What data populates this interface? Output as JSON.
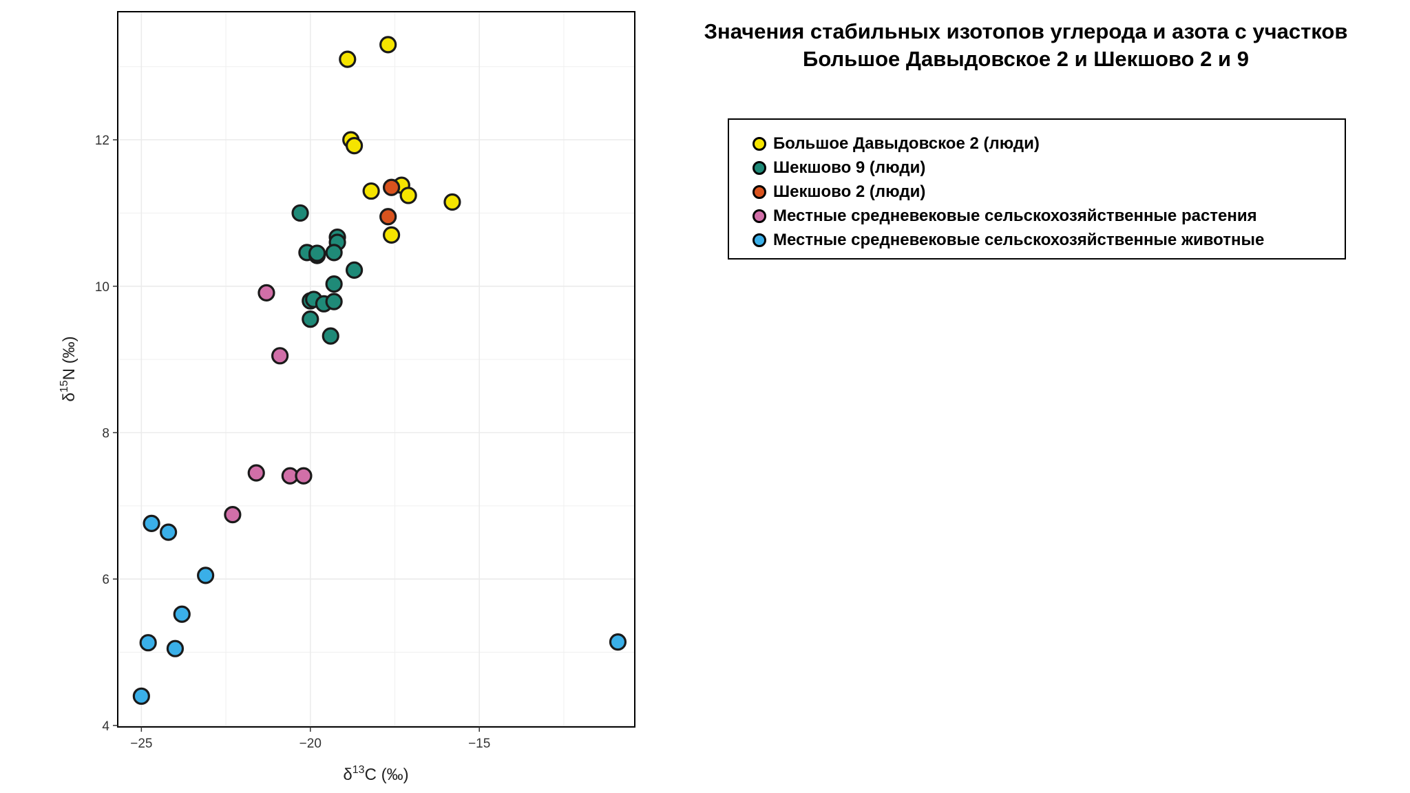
{
  "chart_data": {
    "type": "scatter",
    "title": [
      "Значения стабильных изотопов углерода и азота с участков",
      "Большое Давыдовское 2 и Шекшово 2 и 9"
    ],
    "xlabel": {
      "base": "δ",
      "sup": "13",
      "rest": "C (‰)"
    },
    "ylabel": {
      "base": "δ",
      "sup": "15",
      "rest": "N (‰)"
    },
    "xlim": [
      -25.7,
      -10.4
    ],
    "ylim": [
      3.98,
      13.75
    ],
    "xticks": [
      {
        "value": -25,
        "label": "−25"
      },
      {
        "value": -20,
        "label": "−20"
      },
      {
        "value": -15,
        "label": "−15"
      }
    ],
    "yticks": [
      {
        "value": 4,
        "label": "4"
      },
      {
        "value": 6,
        "label": "6"
      },
      {
        "value": 8,
        "label": "8"
      },
      {
        "value": 10,
        "label": "10"
      },
      {
        "value": 12,
        "label": "12"
      }
    ],
    "grid": true,
    "legend_position": "right",
    "series": [
      {
        "name": "Большое Давыдовское 2 (люди)",
        "color": "#F5E400",
        "points": [
          [
            -17.7,
            13.3
          ],
          [
            -18.9,
            13.1
          ],
          [
            -18.8,
            12.0
          ],
          [
            -18.7,
            11.92
          ],
          [
            -18.2,
            11.3
          ],
          [
            -17.3,
            11.38
          ],
          [
            -17.1,
            11.24
          ],
          [
            -15.8,
            11.15
          ],
          [
            -17.6,
            10.7
          ]
        ]
      },
      {
        "name": "Шекшово 9 (люди)",
        "color": "#1F8A78",
        "points": [
          [
            -20.3,
            11.0
          ],
          [
            -19.2,
            10.67
          ],
          [
            -19.2,
            10.6
          ],
          [
            -20.1,
            10.46
          ],
          [
            -19.8,
            10.42
          ],
          [
            -19.8,
            10.45
          ],
          [
            -19.3,
            10.46
          ],
          [
            -18.7,
            10.22
          ],
          [
            -19.3,
            10.03
          ],
          [
            -20.0,
            9.8
          ],
          [
            -19.9,
            9.82
          ],
          [
            -19.6,
            9.76
          ],
          [
            -19.3,
            9.79
          ],
          [
            -20.0,
            9.55
          ],
          [
            -19.4,
            9.32
          ]
        ]
      },
      {
        "name": "Шекшово 2 (люди)",
        "color": "#D9531E",
        "points": [
          [
            -17.6,
            11.35
          ],
          [
            -17.7,
            10.95
          ]
        ]
      },
      {
        "name": "Местные средневековые сельскохозяйственные растения",
        "color": "#D16FA8",
        "points": [
          [
            -21.3,
            9.91
          ],
          [
            -20.9,
            9.05
          ],
          [
            -21.6,
            7.45
          ],
          [
            -20.6,
            7.41
          ],
          [
            -20.2,
            7.41
          ],
          [
            -22.3,
            6.88
          ]
        ]
      },
      {
        "name": "Местные средневековые сельскохозяйственные животные",
        "color": "#3AAFE8",
        "points": [
          [
            -24.7,
            6.76
          ],
          [
            -24.2,
            6.64
          ],
          [
            -23.1,
            6.05
          ],
          [
            -23.8,
            5.52
          ],
          [
            -24.8,
            5.13
          ],
          [
            -24.0,
            5.05
          ],
          [
            -25.0,
            4.4
          ],
          [
            -10.9,
            5.14
          ]
        ]
      }
    ]
  }
}
